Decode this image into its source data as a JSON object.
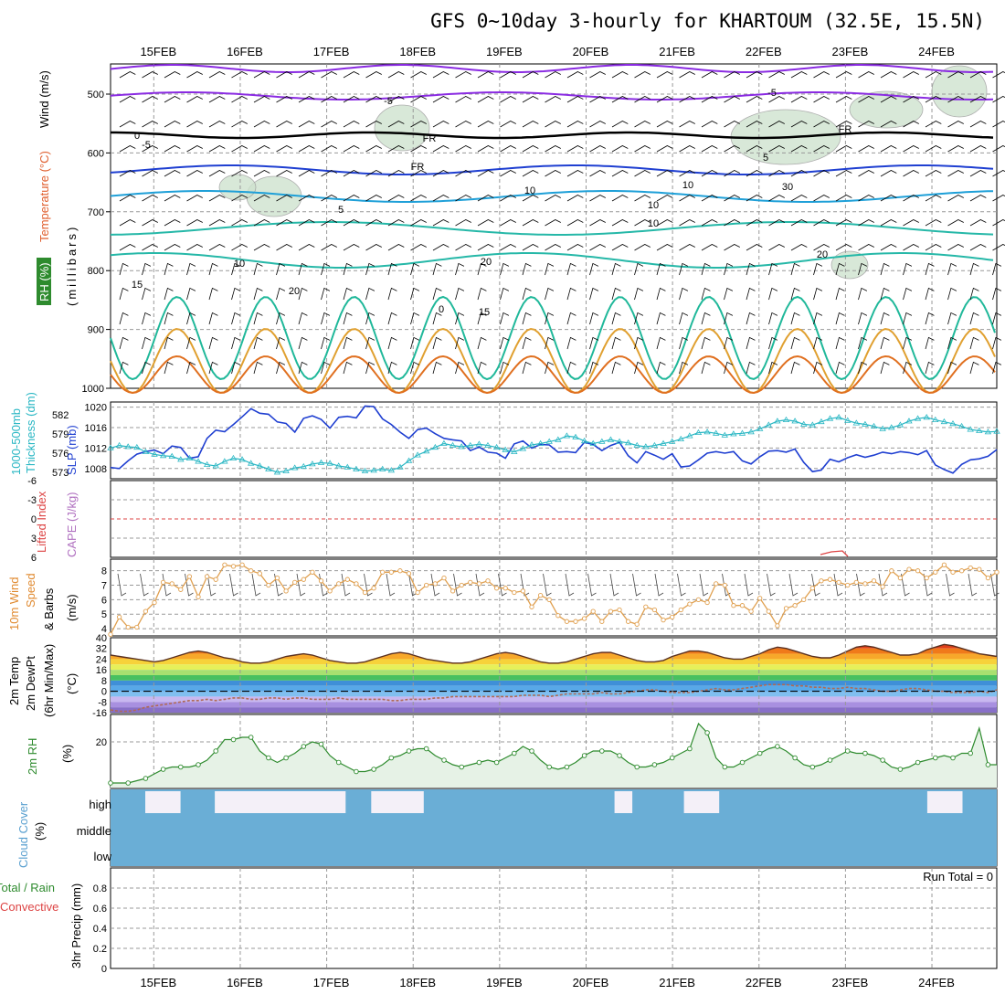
{
  "title": "GFS 0~10day 3-hourly for KHARTOUM (32.5E, 15.5N)",
  "dates": [
    "15FEB",
    "16FEB",
    "17FEB",
    "18FEB",
    "19FEB",
    "20FEB",
    "21FEB",
    "22FEB",
    "23FEB",
    "24FEB"
  ],
  "colors": {
    "grid": "#999999",
    "sea_level_pressure": "#1f3fd1",
    "thickness": "#2ab7c4",
    "temp_2m_fill": "#e9743a",
    "dewpoint": "#b06a55",
    "rh": "#2e8b2e",
    "rh_fill": "#e6f2e6",
    "cloud": "#6aaed6",
    "cloud_gap": "#f4f0f8",
    "wind_speed": "#e0a050",
    "freezing_line": "#000000",
    "cape_zero_line": "#dd4444",
    "lifted_index": "#dd4444"
  },
  "panels": {
    "upper_air": {
      "y_labels": [
        "Temperature (°C)",
        "Wind (m/s)",
        "RH (%)",
        "(millibars)"
      ],
      "ticks": [
        "500",
        "600",
        "700",
        "800",
        "900",
        "1000"
      ],
      "isotherm_labels": [
        "-5",
        "-5",
        "-5",
        "FR",
        "FR",
        "FR",
        "5",
        "5",
        "10",
        "10",
        "10",
        "15",
        "15",
        "20",
        "20",
        "20",
        "0",
        "0",
        "10",
        "10",
        "30"
      ]
    },
    "slp": {
      "left_label": "1000-500mb",
      "left_label2": "Thickness (dm)",
      "right_label": "SLP (mb)",
      "thick_ticks": [
        "582",
        "579",
        "576",
        "573"
      ],
      "slp_ticks": [
        "1020",
        "1016",
        "1012",
        "1008"
      ]
    },
    "cape": {
      "left_label": "Lifted Index",
      "right_label": "CAPE (J/kg)",
      "ticks": [
        "-6",
        "-3",
        "0",
        "3",
        "6"
      ]
    },
    "wind10m": {
      "label1": "10m Wind",
      "label2": "Speed",
      "label3": "& Barbs",
      "units": "(m/s)",
      "ticks": [
        "8",
        "7",
        "6",
        "5",
        "4"
      ]
    },
    "temp2m": {
      "label1": "2m Temp",
      "label2": "2m DewPt",
      "label3": "(6hr Min/Max)",
      "units": "(°C)",
      "ticks": [
        "40",
        "32",
        "24",
        "16",
        "8",
        "0",
        "-8",
        "-16"
      ]
    },
    "rh2m": {
      "label": "2m RH",
      "units": "(%)",
      "ticks": [
        "20"
      ]
    },
    "cloud": {
      "label": "Cloud Cover",
      "units": "(%)",
      "levels": [
        "high",
        "middle",
        "low"
      ]
    },
    "precip": {
      "label1": "Total / Rain",
      "label2": "Convective",
      "label3": "3hr Precip (mm)",
      "ticks": [
        "0.8",
        "0.6",
        "0.4",
        "0.2",
        "0"
      ],
      "run_total": "Run Total = 0"
    }
  },
  "chart_data": [
    {
      "type": "line",
      "title": "SLP (mb)",
      "series": [
        {
          "name": "SLP (mb)",
          "values": [
            1008.2,
            1008.0,
            1009.5,
            1010.8,
            1011.3,
            1011.6,
            1010.9,
            1012.4,
            1012.1,
            1010.0,
            1010.3,
            1013.9,
            1015.5,
            1015.2,
            1016.6,
            1018.1,
            1019.7,
            1018.8,
            1018.6,
            1017.1,
            1016.8,
            1015.1,
            1017.8,
            1018.3,
            1017.6,
            1015.9,
            1018.0,
            1018.2,
            1017.9,
            1020.2,
            1020.1,
            1017.7,
            1016.6,
            1015.1,
            1013.9,
            1015.6,
            1015.9,
            1014.8,
            1013.9,
            1013.6,
            1013.4,
            1011.5,
            1012.2,
            1011.2,
            1011.0,
            1010.0,
            1012.8,
            1013.4,
            1012.0,
            1012.7,
            1012.6,
            1011.2,
            1011.3,
            1011.1,
            1013.1,
            1012.7,
            1011.5,
            1012.5,
            1013.1,
            1010.5,
            1009.1,
            1011.3,
            1010.6,
            1009.8,
            1010.9,
            1008.3,
            1008.5,
            1009.7,
            1011.0,
            1011.3,
            1011.0,
            1011.3,
            1009.5,
            1008.9,
            1010.3,
            1011.4,
            1011.5,
            1011.2,
            1011.8,
            1009.2,
            1007.4,
            1007.7,
            1009.8,
            1009.3,
            1010.1,
            1010.7,
            1010.2,
            1010.6,
            1011.2,
            1010.9,
            1011.3,
            1011.1,
            1010.7,
            1011.5,
            1008.7,
            1007.8,
            1007.1,
            1008.8,
            1009.7,
            1009.9,
            1010.4,
            1011.7
          ]
        }
      ],
      "ylim": [
        1006,
        1021
      ]
    },
    {
      "type": "line",
      "title": "1000-500mb Thickness (dm)",
      "series": [
        {
          "name": "1000-500mb Thickness (dm)",
          "values": [
            576.8,
            577.2,
            577.0,
            576.9,
            576.2,
            575.8,
            575.6,
            575.5,
            575.0,
            575.2,
            574.7,
            574.2,
            574.0,
            574.7,
            575.2,
            575.0,
            574.4,
            574.0,
            573.5,
            573.0,
            573.2,
            573.7,
            573.9,
            574.3,
            574.5,
            574.4,
            574.0,
            573.8,
            573.5,
            573.2,
            573.3,
            573.5,
            573.3,
            573.8,
            574.8,
            575.7,
            576.3,
            576.9,
            577.5,
            577.2,
            577.0,
            577.2,
            577.4,
            577.2,
            576.9,
            576.5,
            576.2,
            576.7,
            577.3,
            577.5,
            577.8,
            578.1,
            578.7,
            578.5,
            577.9,
            577.5,
            577.8,
            578.1,
            577.8,
            577.6,
            577.2,
            577.0,
            577.2,
            577.5,
            577.8,
            578.2,
            578.7,
            579.2,
            579.3,
            579.1,
            578.8,
            579.0,
            579.1,
            579.3,
            579.8,
            580.4,
            581.0,
            581.2,
            581.0,
            580.5,
            580.4,
            580.9,
            581.4,
            581.6,
            581.1,
            580.7,
            580.5,
            580.2,
            579.8,
            580.0,
            580.4,
            581.0,
            581.4,
            581.6,
            581.2,
            580.9,
            580.6,
            580.2,
            579.7,
            579.5,
            579.3,
            579.4
          ]
        }
      ],
      "ylim": [
        572,
        584
      ]
    },
    {
      "type": "line",
      "title": "10m Wind Speed (m/s)",
      "series": [
        {
          "name": "10m Wind Speed (m/s)",
          "values": [
            3.6,
            4.8,
            4.1,
            4.1,
            5.2,
            5.8,
            7.2,
            7.1,
            6.7,
            7.6,
            6.2,
            7.6,
            7.4,
            8.4,
            8.3,
            8.4,
            8.0,
            7.8,
            7.0,
            7.5,
            6.6,
            7.2,
            7.4,
            7.9,
            7.3,
            6.6,
            7.1,
            7.4,
            7.1,
            6.5,
            6.8,
            7.9,
            7.9,
            8.0,
            7.8,
            6.5,
            7.0,
            7.1,
            7.5,
            6.6,
            7.0,
            7.2,
            7.1,
            7.3,
            6.8,
            6.8,
            6.5,
            6.6,
            5.5,
            6.3,
            6.0,
            4.9,
            4.5,
            4.5,
            4.7,
            5.2,
            4.5,
            5.2,
            5.3,
            4.5,
            4.3,
            5.5,
            5.3,
            4.6,
            4.8,
            5.3,
            5.7,
            6.0,
            5.8,
            7.1,
            7.0,
            5.6,
            5.6,
            5.2,
            6.1,
            5.2,
            4.2,
            5.4,
            5.6,
            6.0,
            6.8,
            7.3,
            7.4,
            7.2,
            7.0,
            7.2,
            7.1,
            7.3,
            6.9,
            8.0,
            7.5,
            8.1,
            8.0,
            7.5,
            7.9,
            8.4,
            7.9,
            8.0,
            8.2,
            8.1,
            7.5,
            7.9
          ]
        }
      ],
      "ylim": [
        3.5,
        8.8
      ]
    },
    {
      "type": "area",
      "title": "2m Temp (°C)",
      "series": [
        {
          "name": "2m Temp (°C)",
          "values": [
            27,
            26,
            25,
            24,
            23,
            22,
            23,
            25,
            27,
            29,
            30,
            29,
            27,
            25,
            24,
            22,
            21,
            21,
            22,
            24,
            26,
            27,
            28,
            27,
            25,
            23,
            22,
            21,
            21,
            22,
            24,
            26,
            28,
            29,
            28,
            26,
            24,
            23,
            22,
            21,
            21,
            22,
            24,
            26,
            28,
            29,
            28,
            26,
            24,
            22,
            21,
            21,
            22,
            24,
            26,
            28,
            29,
            29,
            27,
            25,
            23,
            22,
            22,
            23,
            26,
            28,
            30,
            30,
            29,
            27,
            25,
            24,
            24,
            26,
            28,
            31,
            33,
            32,
            30,
            28,
            26,
            25,
            25,
            27,
            30,
            33,
            34,
            33,
            31,
            29,
            27,
            27,
            28,
            31,
            33,
            35,
            34,
            32,
            30,
            28,
            27,
            26
          ]
        },
        {
          "name": "2m DewPt (°C)",
          "values": [
            -14,
            -15,
            -15,
            -14,
            -12,
            -11,
            -10,
            -9,
            -8,
            -7,
            -7,
            -6,
            -7,
            -6,
            -5,
            -5,
            -6,
            -6,
            -5,
            -5,
            -6,
            -5,
            -5,
            -6,
            -6,
            -6,
            -5,
            -6,
            -6,
            -6,
            -6,
            -6,
            -7,
            -7,
            -6,
            -6,
            -6,
            -5,
            -5,
            -4,
            -4,
            -4,
            -4,
            -4,
            -4,
            -4,
            -4,
            -3,
            -3,
            -3,
            -4,
            -3,
            -2,
            -2,
            -2,
            -2,
            -1,
            -2,
            -2,
            -1,
            0,
            1,
            1,
            0,
            -1,
            -1,
            -1,
            0,
            1,
            2,
            1,
            1,
            2,
            3,
            4,
            5,
            5,
            5,
            4,
            4,
            3,
            3,
            2,
            2,
            3,
            2,
            2,
            1,
            0,
            0,
            1,
            2,
            2,
            1,
            0,
            0,
            -1,
            -1,
            -1,
            0,
            -1,
            1
          ]
        }
      ],
      "ylim": [
        -16,
        40
      ]
    },
    {
      "type": "area",
      "title": "2m RH (%)",
      "series": [
        {
          "name": "2m RH (%)",
          "values": [
            2,
            2,
            2,
            3,
            4,
            6,
            8,
            9,
            9,
            9,
            10,
            12,
            16,
            21,
            21,
            22,
            22,
            16,
            13,
            11,
            13,
            15,
            18,
            20,
            19,
            14,
            11,
            9,
            7,
            7,
            8,
            10,
            13,
            14,
            16,
            17,
            17,
            14,
            12,
            10,
            9,
            10,
            11,
            12,
            11,
            13,
            15,
            18,
            16,
            12,
            9,
            8,
            9,
            11,
            14,
            16,
            16,
            16,
            14,
            11,
            9,
            9,
            10,
            11,
            13,
            15,
            17,
            28,
            24,
            13,
            9,
            9,
            11,
            13,
            15,
            17,
            18,
            16,
            13,
            10,
            9,
            10,
            12,
            14,
            16,
            15,
            15,
            14,
            12,
            9,
            8,
            9,
            11,
            12,
            13,
            14,
            13,
            15,
            15,
            26,
            10,
            10
          ]
        }
      ],
      "ylim": [
        0,
        32
      ]
    },
    {
      "type": "bar",
      "title": "Cloud Cover (%)",
      "series": [
        {
          "name": "high cloud (%)",
          "values": [
            0,
            0,
            0,
            0,
            100,
            100,
            100,
            100,
            0,
            0,
            0,
            0,
            100,
            100,
            100,
            100,
            100,
            100,
            100,
            100,
            100,
            100,
            100,
            100,
            100,
            100,
            100,
            0,
            0,
            0,
            100,
            100,
            100,
            100,
            100,
            100,
            0,
            0,
            0,
            0,
            0,
            0,
            0,
            0,
            0,
            0,
            0,
            0,
            0,
            0,
            0,
            0,
            0,
            0,
            0,
            0,
            0,
            0,
            100,
            100,
            0,
            0,
            0,
            0,
            0,
            0,
            100,
            100,
            100,
            100,
            0,
            0,
            0,
            0,
            0,
            0,
            0,
            0,
            0,
            0,
            0,
            0,
            0,
            0,
            0,
            0,
            0,
            0,
            0,
            0,
            0,
            0,
            0,
            0,
            100,
            100,
            100,
            100,
            0,
            0,
            0,
            0
          ]
        }
      ],
      "ylim": [
        0,
        100
      ]
    },
    {
      "type": "bar",
      "title": "3hr Precip (mm)",
      "series": [
        {
          "name": "3hr Precip (mm)",
          "values": [
            0,
            0,
            0,
            0,
            0,
            0,
            0,
            0,
            0,
            0,
            0,
            0,
            0,
            0,
            0,
            0,
            0,
            0,
            0,
            0,
            0,
            0,
            0,
            0,
            0,
            0,
            0,
            0,
            0,
            0,
            0,
            0,
            0,
            0,
            0,
            0,
            0,
            0,
            0,
            0,
            0,
            0,
            0,
            0,
            0,
            0,
            0,
            0,
            0,
            0,
            0,
            0,
            0,
            0,
            0,
            0,
            0,
            0,
            0,
            0,
            0,
            0,
            0,
            0,
            0,
            0,
            0,
            0,
            0,
            0,
            0,
            0,
            0,
            0,
            0,
            0,
            0,
            0,
            0,
            0,
            0,
            0,
            0,
            0,
            0,
            0,
            0,
            0,
            0,
            0,
            0,
            0,
            0,
            0,
            0,
            0,
            0,
            0,
            0,
            0,
            0,
            0
          ]
        }
      ],
      "ylim": [
        0,
        1
      ]
    }
  ]
}
